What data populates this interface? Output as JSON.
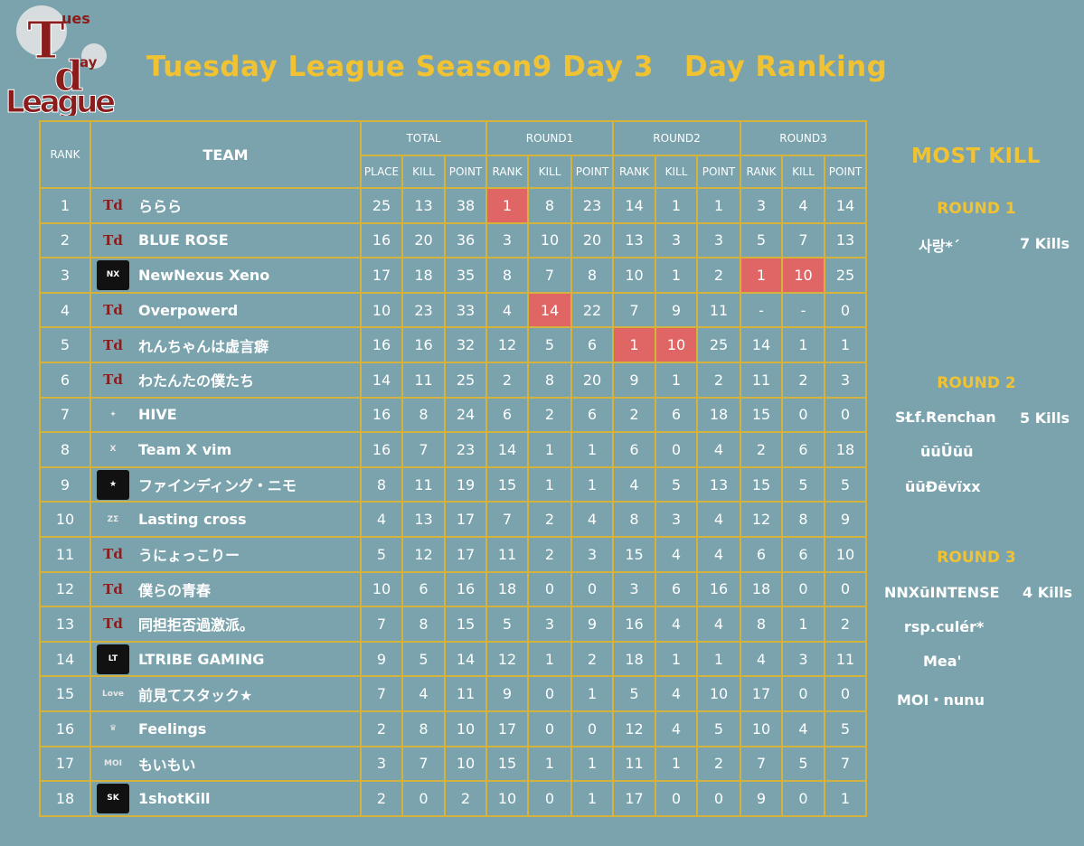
{
  "logo": {
    "line1": "T",
    "line1b": "ues",
    "line2": "d",
    "line2b": "ay",
    "line3": "League"
  },
  "title": "Tuesday League Season9 Day 3   Day Ranking",
  "headers": {
    "rank": "RANK",
    "team": "TEAM",
    "total": "TOTAL",
    "round1": "ROUND1",
    "round2": "ROUND2",
    "round3": "ROUND3",
    "place": "PLACE",
    "kill": "KILL",
    "point": "POINT",
    "sub_rank": "RANK"
  },
  "rows": [
    {
      "rank": "1",
      "team": "ららら",
      "logo": "td",
      "total": [
        "25",
        "13",
        "38"
      ],
      "r1": [
        "1",
        "8",
        "23"
      ],
      "r2": [
        "14",
        "1",
        "1"
      ],
      "r3": [
        "3",
        "4",
        "14"
      ]
    },
    {
      "rank": "2",
      "team": "BLUE ROSE",
      "logo": "td",
      "total": [
        "16",
        "20",
        "36"
      ],
      "r1": [
        "3",
        "10",
        "20"
      ],
      "r2": [
        "13",
        "3",
        "3"
      ],
      "r3": [
        "5",
        "7",
        "13"
      ]
    },
    {
      "rank": "3",
      "team": "NewNexus Xeno",
      "logo": "nx",
      "total": [
        "17",
        "18",
        "35"
      ],
      "r1": [
        "8",
        "7",
        "8"
      ],
      "r2": [
        "10",
        "1",
        "2"
      ],
      "r3": [
        "1",
        "10",
        "25"
      ]
    },
    {
      "rank": "4",
      "team": "Overpowerd",
      "logo": "td",
      "total": [
        "10",
        "23",
        "33"
      ],
      "r1": [
        "4",
        "14",
        "22"
      ],
      "r2": [
        "7",
        "9",
        "11"
      ],
      "r3": [
        "-",
        "-",
        "0"
      ]
    },
    {
      "rank": "5",
      "team": "れんちゃんは虚言癖",
      "logo": "td",
      "total": [
        "16",
        "16",
        "32"
      ],
      "r1": [
        "12",
        "5",
        "6"
      ],
      "r2": [
        "1",
        "10",
        "25"
      ],
      "r3": [
        "14",
        "1",
        "1"
      ]
    },
    {
      "rank": "6",
      "team": "わたんたの僕たち",
      "logo": "td",
      "total": [
        "14",
        "11",
        "25"
      ],
      "r1": [
        "2",
        "8",
        "20"
      ],
      "r2": [
        "9",
        "1",
        "2"
      ],
      "r3": [
        "11",
        "2",
        "3"
      ]
    },
    {
      "rank": "7",
      "team": "HIVE",
      "logo": "hive",
      "total": [
        "16",
        "8",
        "24"
      ],
      "r1": [
        "6",
        "2",
        "6"
      ],
      "r2": [
        "2",
        "6",
        "18"
      ],
      "r3": [
        "15",
        "0",
        "0"
      ]
    },
    {
      "rank": "8",
      "team": "Team X vim",
      "logo": "xvim",
      "total": [
        "16",
        "7",
        "23"
      ],
      "r1": [
        "14",
        "1",
        "1"
      ],
      "r2": [
        "6",
        "0",
        "4"
      ],
      "r3": [
        "2",
        "6",
        "18"
      ]
    },
    {
      "rank": "9",
      "team": "ファインディング・ニモ",
      "logo": "nemo",
      "total": [
        "8",
        "11",
        "19"
      ],
      "r1": [
        "15",
        "1",
        "1"
      ],
      "r2": [
        "4",
        "5",
        "13"
      ],
      "r3": [
        "15",
        "5",
        "5"
      ]
    },
    {
      "rank": "10",
      "team": "Lasting cross",
      "logo": "lc",
      "total": [
        "4",
        "13",
        "17"
      ],
      "r1": [
        "7",
        "2",
        "4"
      ],
      "r2": [
        "8",
        "3",
        "4"
      ],
      "r3": [
        "12",
        "8",
        "9"
      ]
    },
    {
      "rank": "11",
      "team": "うにょっこりー",
      "logo": "td",
      "total": [
        "5",
        "12",
        "17"
      ],
      "r1": [
        "11",
        "2",
        "3"
      ],
      "r2": [
        "15",
        "4",
        "4"
      ],
      "r3": [
        "6",
        "6",
        "10"
      ]
    },
    {
      "rank": "12",
      "team": "僕らの青春",
      "logo": "td",
      "total": [
        "10",
        "6",
        "16"
      ],
      "r1": [
        "18",
        "0",
        "0"
      ],
      "r2": [
        "3",
        "6",
        "16"
      ],
      "r3": [
        "18",
        "0",
        "0"
      ]
    },
    {
      "rank": "13",
      "team": "同担拒否過激派。",
      "logo": "td",
      "total": [
        "7",
        "8",
        "15"
      ],
      "r1": [
        "5",
        "3",
        "9"
      ],
      "r2": [
        "16",
        "4",
        "4"
      ],
      "r3": [
        "8",
        "1",
        "2"
      ]
    },
    {
      "rank": "14",
      "team": "LTRIBE GAMING",
      "logo": "lt",
      "total": [
        "9",
        "5",
        "14"
      ],
      "r1": [
        "12",
        "1",
        "2"
      ],
      "r2": [
        "18",
        "1",
        "1"
      ],
      "r3": [
        "4",
        "3",
        "11"
      ]
    },
    {
      "rank": "15",
      "team": "前見てスタック★",
      "logo": "lov",
      "total": [
        "7",
        "4",
        "11"
      ],
      "r1": [
        "9",
        "0",
        "1"
      ],
      "r2": [
        "5",
        "4",
        "10"
      ],
      "r3": [
        "17",
        "0",
        "0"
      ]
    },
    {
      "rank": "16",
      "team": "Feelings",
      "logo": "fe",
      "total": [
        "2",
        "8",
        "10"
      ],
      "r1": [
        "17",
        "0",
        "0"
      ],
      "r2": [
        "12",
        "4",
        "5"
      ],
      "r3": [
        "10",
        "4",
        "5"
      ]
    },
    {
      "rank": "17",
      "team": "もいもい",
      "logo": "moi",
      "total": [
        "3",
        "7",
        "10"
      ],
      "r1": [
        "15",
        "1",
        "1"
      ],
      "r2": [
        "11",
        "1",
        "2"
      ],
      "r3": [
        "7",
        "5",
        "7"
      ]
    },
    {
      "rank": "18",
      "team": "1shotKill",
      "logo": "sk",
      "total": [
        "2",
        "0",
        "2"
      ],
      "r1": [
        "10",
        "0",
        "1"
      ],
      "r2": [
        "17",
        "0",
        "0"
      ],
      "r3": [
        "9",
        "0",
        "1"
      ]
    }
  ],
  "highlights": [
    [
      0,
      "r1",
      0
    ],
    [
      3,
      "r1",
      1
    ],
    [
      4,
      "r2",
      0
    ],
    [
      4,
      "r2",
      1
    ],
    [
      2,
      "r3",
      0
    ],
    [
      2,
      "r3",
      1
    ]
  ],
  "logo_marks": {
    "td": "Td",
    "nx": "NX",
    "hive": "✦",
    "xvim": "X",
    "nemo": "★",
    "lc": "ΖΣ",
    "lt": "LT",
    "lov": "Love",
    "fe": "♛",
    "moi": "MOI",
    "sk": "SK"
  },
  "most_kill": {
    "title": "MOST KILL",
    "round1": {
      "label": "ROUND 1",
      "players": [
        "사랑*´"
      ],
      "kills": "7 Kills"
    },
    "round2": {
      "label": "ROUND 2",
      "players": [
        "SŁf.Renchan",
        "ūūŪūū",
        "ūūĐëvïxx"
      ],
      "kills": "5 Kills"
    },
    "round3": {
      "label": "ROUND 3",
      "players": [
        "NNXūINTENSE",
        "rsp.culér*",
        "Mea'",
        "MOI・nunu"
      ],
      "kills": "4 Kills"
    }
  }
}
